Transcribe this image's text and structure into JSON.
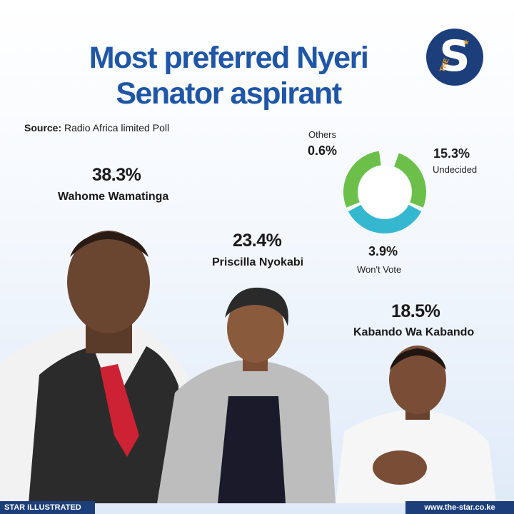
{
  "header": {
    "title_line1": "Most preferred  Nyeri",
    "title_line2": "Senator aspirant",
    "source_label": "Source:",
    "source_text": "Radio Africa limited Poll",
    "logo_text": "S",
    "logo_small": "THE"
  },
  "candidates": [
    {
      "name": "Wahome Wamatinga",
      "pct": "38.3%"
    },
    {
      "name": "Priscilla Nyokabi",
      "pct": "23.4%"
    },
    {
      "name": "Kabando Wa Kabando",
      "pct": "18.5%"
    }
  ],
  "donut": [
    {
      "label": "Undecided",
      "pct": "15.3%"
    },
    {
      "label": "Won't Vote",
      "pct": "3.9%"
    },
    {
      "label": "Others",
      "pct": "0.6%"
    }
  ],
  "footer": {
    "left": "STAR ILLUSTRATED",
    "right": "www.the-star.co.ke"
  },
  "colors": {
    "title": "#1f56a6",
    "brand_navy": "#1c3f7c",
    "donut_green": "#6cc04a",
    "donut_teal": "#35b8cf",
    "accent_orange": "#f2a21a"
  },
  "chart_data": {
    "type": "bar",
    "title": "Most preferred  Nyeri Senator aspirant",
    "categories": [
      "Wahome Wamatinga",
      "Priscilla Nyokabi",
      "Kabando Wa Kabando",
      "Undecided",
      "Won't Vote",
      "Others"
    ],
    "values": [
      38.3,
      23.4,
      18.5,
      15.3,
      3.9,
      0.6
    ],
    "unit": "%"
  }
}
